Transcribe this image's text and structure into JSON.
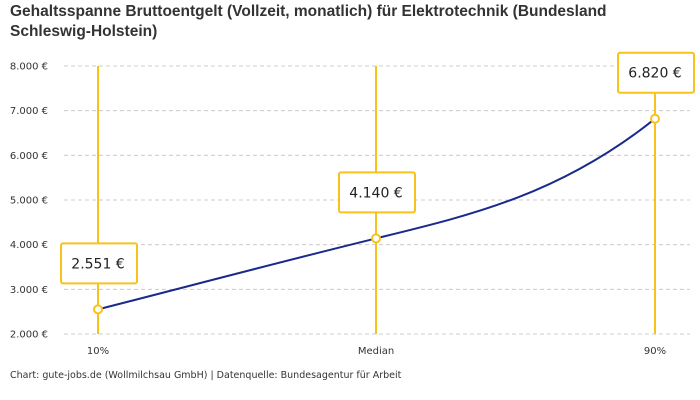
{
  "chart_data": {
    "type": "line",
    "title": "Gehaltsspanne Bruttoentgelt (Vollzeit, monatlich) für Elektrotechnik (Bundesland Schleswig-Holstein)",
    "categories": [
      "10%",
      "Median",
      "90%"
    ],
    "values": [
      2551,
      4140,
      6820
    ],
    "value_labels": [
      "2.551 €",
      "4.140 €",
      "6.820 €"
    ],
    "ylim": [
      2000,
      8000
    ],
    "yticks": [
      2000,
      3000,
      4000,
      5000,
      6000,
      7000,
      8000
    ],
    "ytick_labels": [
      "2.000 €",
      "3.000 €",
      "4.000 €",
      "5.000 €",
      "6.000 €",
      "7.000 €",
      "8.000 €"
    ],
    "xlabel": "",
    "ylabel": "",
    "grid": true,
    "colors": {
      "line": "#1a2a8c",
      "marker": "#f8c21c",
      "grid": "#cccccc"
    }
  },
  "footer": "Chart: gute-jobs.de (Wollmilchsau GmbH) | Datenquelle: Bundesagentur für Arbeit"
}
